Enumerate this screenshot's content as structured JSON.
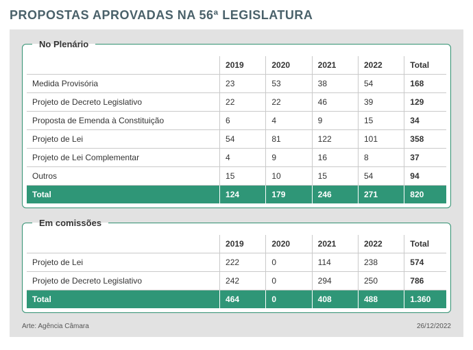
{
  "title": "PROPOSTAS APROVADAS NA 56ª LEGISLATURA",
  "title_color": "#4a616a",
  "panel_bg": "#e2e2e2",
  "section_border": "#2f8f6f",
  "total_row_bg": "#2f9677",
  "grid_color": "#c9c9c9",
  "years": [
    "2019",
    "2020",
    "2021",
    "2022"
  ],
  "total_label": "Total",
  "sections": {
    "plenario": {
      "legend": "No Plenário",
      "rows": [
        {
          "label": "Medida Provisória",
          "vals": [
            "23",
            "53",
            "38",
            "54"
          ],
          "total": "168"
        },
        {
          "label": "Projeto de Decreto Legislativo",
          "vals": [
            "22",
            "22",
            "46",
            "39"
          ],
          "total": "129"
        },
        {
          "label": "Proposta de Emenda à Constituição",
          "vals": [
            "6",
            "4",
            "9",
            "15"
          ],
          "total": "34"
        },
        {
          "label": " Projeto de Lei",
          "vals": [
            "54",
            "81",
            "122",
            "101"
          ],
          "total": "358"
        },
        {
          "label": "Projeto de Lei Complementar",
          "vals": [
            "4",
            "9",
            "16",
            "8"
          ],
          "total": "37"
        },
        {
          "label": "Outros",
          "vals": [
            "15",
            "10",
            "15",
            "54"
          ],
          "total": "94"
        }
      ],
      "total_row": {
        "label": "Total",
        "vals": [
          "124",
          "179",
          "246",
          "271"
        ],
        "total": "820"
      }
    },
    "comissoes": {
      "legend": "Em comissões",
      "rows": [
        {
          "label": "Projeto de Lei",
          "vals": [
            "222",
            "0",
            "114",
            "238"
          ],
          "total": "574"
        },
        {
          "label": "Projeto de Decreto Legislativo",
          "vals": [
            "242",
            "0",
            "294",
            "250"
          ],
          "total": "786"
        }
      ],
      "total_row": {
        "label": "Total",
        "vals": [
          "464",
          "0",
          "408",
          "488"
        ],
        "total": "1.360"
      }
    }
  },
  "footer": {
    "credit": "Arte: Agência Câmara",
    "date": "26/12/2022"
  }
}
